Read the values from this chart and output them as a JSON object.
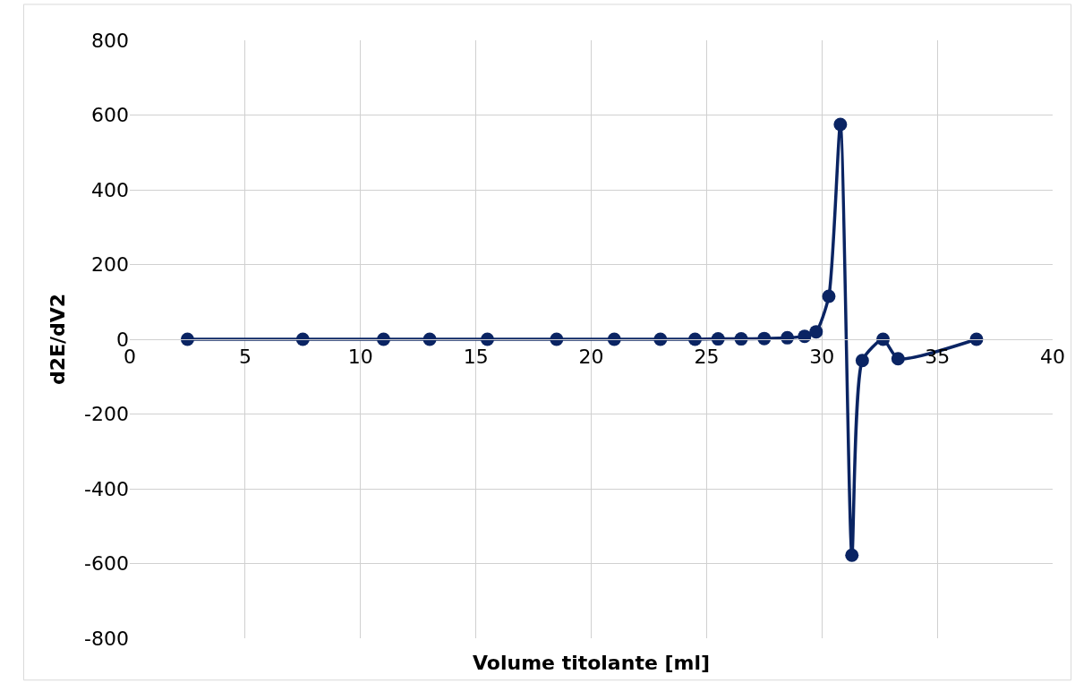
{
  "chart_data": {
    "type": "line",
    "xlabel": "Volume titolante [ml]",
    "ylabel": "d2E/dV2",
    "x": [
      2.5,
      7.5,
      11,
      13,
      15.5,
      18.5,
      21,
      23,
      24.5,
      25.5,
      26.5,
      27.5,
      28.5,
      29.25,
      29.75,
      30.3,
      30.8,
      31.3,
      31.75,
      32.65,
      33.3,
      36.7
    ],
    "series": [
      {
        "color": "#0a2463",
        "values": [
          0,
          0,
          0,
          0,
          0,
          0,
          0,
          0,
          0,
          1,
          1,
          2,
          4,
          8,
          20,
          115,
          575,
          -578,
          -57,
          0,
          -52,
          0
        ]
      }
    ],
    "xlim": [
      0,
      40
    ],
    "xticks": [
      0,
      5,
      10,
      15,
      20,
      25,
      30,
      35,
      40
    ],
    "ylim": [
      -800,
      800
    ],
    "yticks": [
      -800,
      -600,
      -400,
      -200,
      0,
      200,
      400,
      600,
      800
    ],
    "grid": true,
    "marker": "circle",
    "line_style": "solid",
    "legend": false
  }
}
